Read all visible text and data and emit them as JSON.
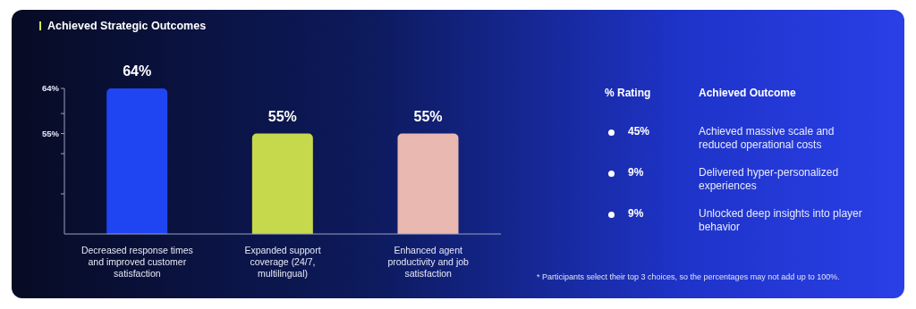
{
  "chart_data": [
    {
      "type": "bar",
      "title": "Achieved Strategic Outcomes",
      "categories": [
        "Decreased response times and improved customer satisfaction",
        "Expanded support coverage (24/7, multilingual)",
        "Enhanced agent productivity and job satisfaction"
      ],
      "values": [
        64,
        55,
        55
      ],
      "colors": [
        "#1f45f2",
        "#c6d94c",
        "#e9b8b0"
      ],
      "value_labels": [
        "64%",
        "55%",
        "55%"
      ],
      "ylim": [
        35,
        64
      ],
      "yticks": [
        {
          "value": 43,
          "label": null
        },
        {
          "value": 51,
          "label": null
        },
        {
          "value": 55,
          "label": "55%"
        },
        {
          "value": 59,
          "label": null
        },
        {
          "value": 64,
          "label": "64%"
        }
      ],
      "grid": false
    },
    {
      "type": "other",
      "xlabel": "% Rating",
      "ylabel": "Achieved Outcome",
      "categories": [
        "Achieved massive scale and reduced operational costs",
        "Delivered hyper-personalized experiences",
        "Unlocked deep insights into player behavior"
      ],
      "values": [
        45,
        9,
        9
      ],
      "value_labels": [
        "45%",
        "9%",
        "9%"
      ],
      "annotations": [
        "* Participants select their top 3 choices, so the percentages may not add up to 100%."
      ]
    }
  ]
}
